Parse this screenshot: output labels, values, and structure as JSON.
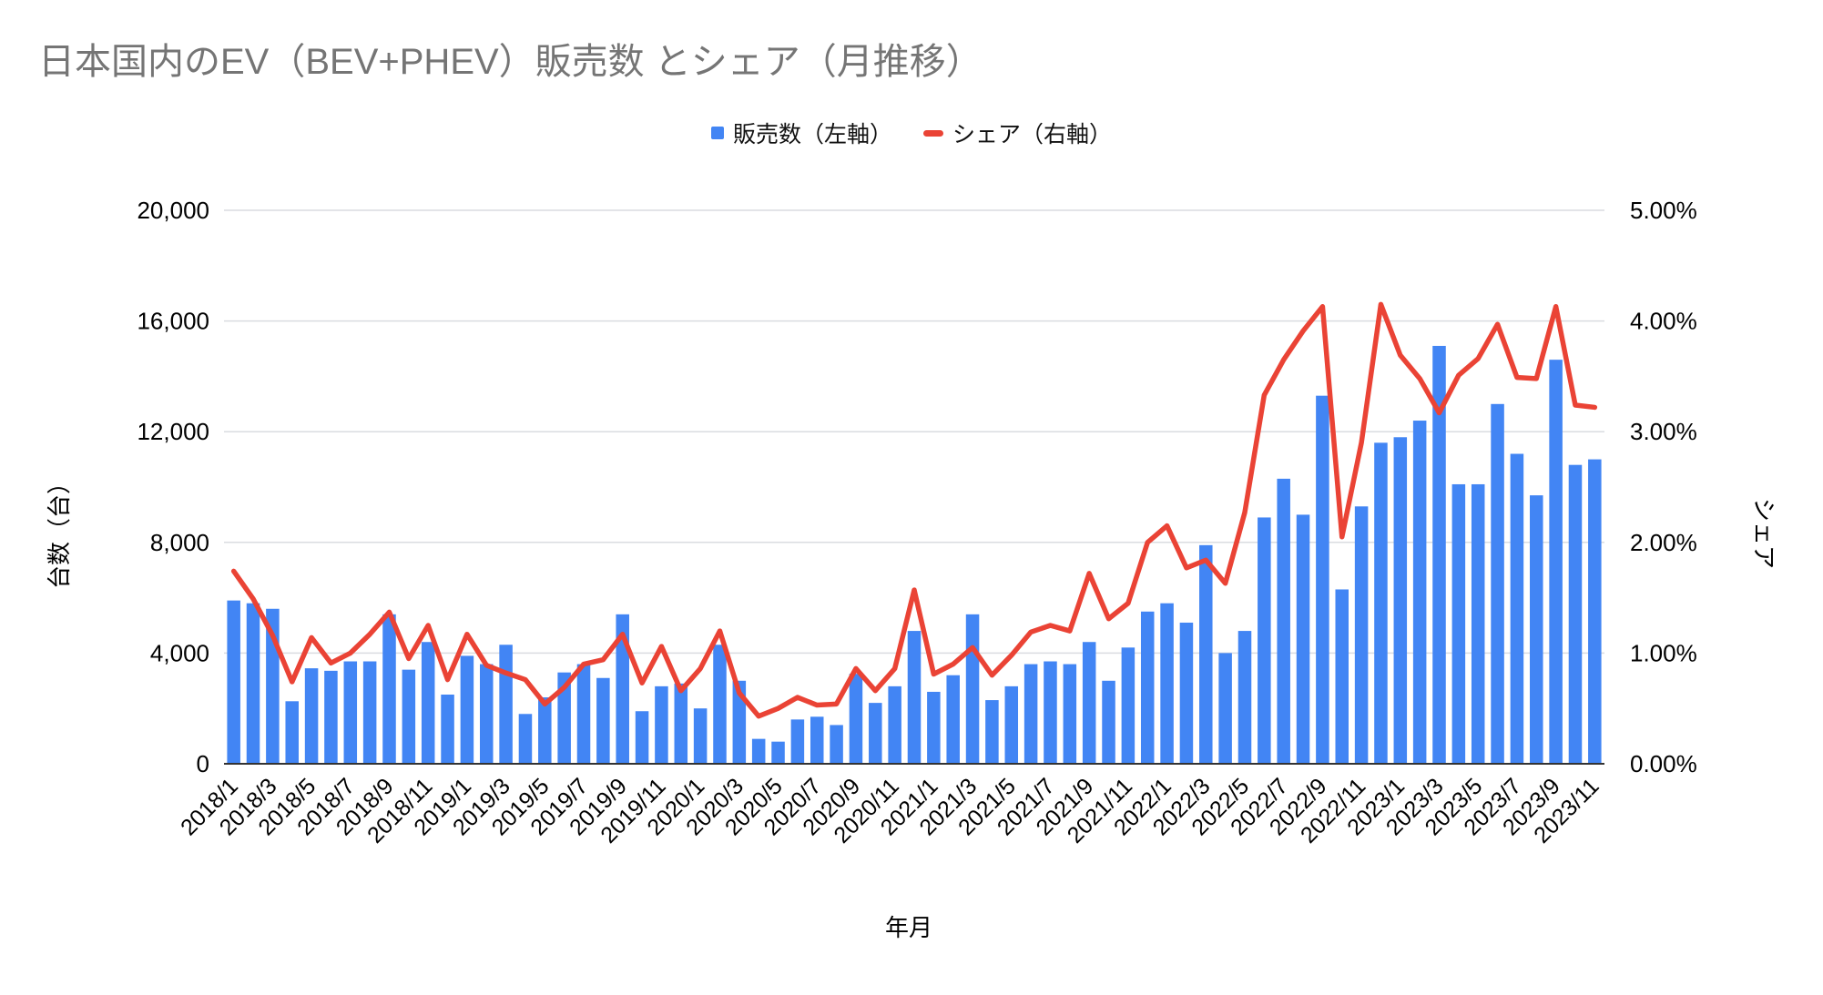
{
  "ui": {
    "legend": {
      "sales": "販売数（左軸）",
      "share": "シェア（右軸）"
    }
  },
  "chart_data": {
    "type": "bar+line",
    "title": "日本国内のEV（BEV+PHEV）販売数 とシェア（月推移）",
    "title_color": "#757575",
    "legend_position": "top-center",
    "grid": true,
    "gridline_color": "#dadce0",
    "axisline_color": "#333333",
    "months": [
      "2018/1",
      "2018/2",
      "2018/3",
      "2018/4",
      "2018/5",
      "2018/6",
      "2018/7",
      "2018/8",
      "2018/9",
      "2018/10",
      "2018/11",
      "2018/12",
      "2019/1",
      "2019/2",
      "2019/3",
      "2019/4",
      "2019/5",
      "2019/6",
      "2019/7",
      "2019/8",
      "2019/9",
      "2019/10",
      "2019/11",
      "2019/12",
      "2020/1",
      "2020/2",
      "2020/3",
      "2020/4",
      "2020/5",
      "2020/6",
      "2020/7",
      "2020/8",
      "2020/9",
      "2020/10",
      "2020/11",
      "2020/12",
      "2021/1",
      "2021/2",
      "2021/3",
      "2021/4",
      "2021/5",
      "2021/6",
      "2021/7",
      "2021/8",
      "2021/9",
      "2021/10",
      "2021/11",
      "2021/12",
      "2022/1",
      "2022/2",
      "2022/3",
      "2022/4",
      "2022/5",
      "2022/6",
      "2022/7",
      "2022/8",
      "2022/9",
      "2022/10",
      "2022/11",
      "2022/12",
      "2023/1",
      "2023/2",
      "2023/3",
      "2023/4",
      "2023/5",
      "2023/6",
      "2023/7",
      "2023/8",
      "2023/9",
      "2023/10",
      "2023/11"
    ],
    "series": [
      {
        "name": "販売数（左軸）",
        "type": "bar",
        "axis": "left",
        "color": "#4285F4",
        "values": [
          5900,
          5800,
          5600,
          2260,
          3450,
          3360,
          3700,
          3700,
          5400,
          3400,
          4400,
          2500,
          3900,
          3600,
          4300,
          1800,
          2400,
          3300,
          3600,
          3100,
          5400,
          1900,
          2800,
          2900,
          2000,
          4300,
          3000,
          900,
          800,
          1600,
          1700,
          1400,
          3250,
          2200,
          2800,
          4800,
          2600,
          3200,
          5400,
          2300,
          2800,
          3600,
          3700,
          3600,
          4400,
          3000,
          4200,
          5500,
          5800,
          5100,
          7900,
          4000,
          4800,
          8900,
          10300,
          9000,
          13300,
          6300,
          9300,
          11600,
          11800,
          12400,
          15100,
          10100,
          10100,
          13000,
          11200,
          9700,
          14600,
          10800,
          11000
        ]
      },
      {
        "name": "シェア（右軸）",
        "type": "line",
        "axis": "right",
        "color": "#EA4335",
        "values": [
          1.74,
          1.49,
          1.16,
          0.74,
          1.14,
          0.91,
          1.0,
          1.17,
          1.37,
          0.95,
          1.25,
          0.76,
          1.17,
          0.89,
          0.82,
          0.76,
          0.54,
          0.69,
          0.9,
          0.94,
          1.17,
          0.73,
          1.06,
          0.66,
          0.86,
          1.2,
          0.64,
          0.43,
          0.5,
          0.6,
          0.53,
          0.54,
          0.86,
          0.66,
          0.86,
          1.57,
          0.81,
          0.9,
          1.05,
          0.8,
          0.98,
          1.19,
          1.25,
          1.2,
          1.72,
          1.31,
          1.45,
          2.0,
          2.15,
          1.77,
          1.84,
          1.63,
          2.27,
          3.33,
          3.65,
          3.91,
          4.13,
          2.05,
          2.9,
          4.15,
          3.69,
          3.48,
          3.17,
          3.51,
          3.66,
          3.97,
          3.49,
          3.48,
          4.13,
          3.24,
          3.22
        ]
      }
    ],
    "y_left": {
      "title": "台数（台）",
      "min": 0,
      "max": 20000,
      "ticks": [
        "0",
        "4,000",
        "8,000",
        "12,000",
        "16,000",
        "20,000"
      ]
    },
    "y_right": {
      "title": "シェア",
      "min": 0,
      "max": 5,
      "ticks": [
        "0.00%",
        "1.00%",
        "2.00%",
        "3.00%",
        "4.00%",
        "5.00%"
      ]
    },
    "x": {
      "title": "年月",
      "tick_every": 2,
      "label_rotation_deg": -45
    }
  }
}
